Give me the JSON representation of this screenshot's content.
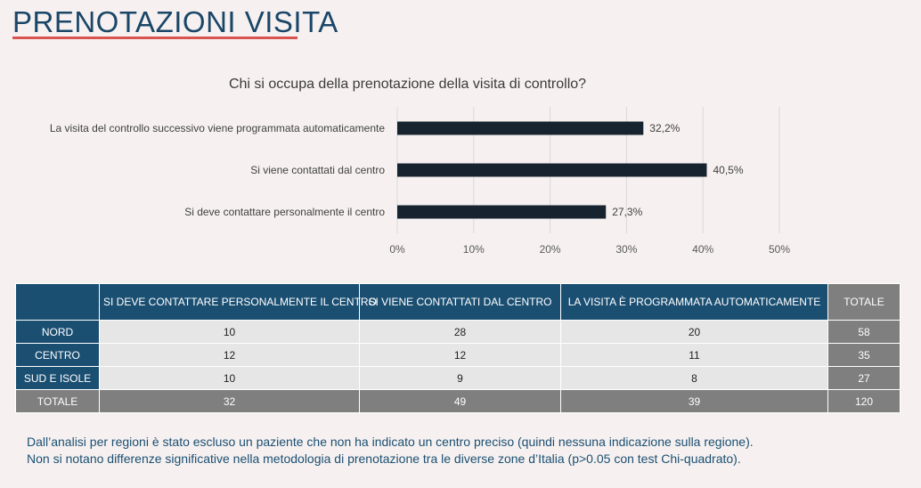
{
  "header": {
    "title": "PRENOTAZIONI VISITA"
  },
  "colors": {
    "bar": "#17232f",
    "grid": "#d9d9d9",
    "header_bg": "#1b4f72",
    "total_bg": "#7f7f7f"
  },
  "chart_data": {
    "type": "bar",
    "orientation": "horizontal",
    "title": "Chi si occupa della prenotazione della visita di controllo?",
    "categories": [
      "La visita del controllo successivo viene programmata automaticamente",
      "Si viene contattati dal centro",
      "Si deve contattare personalmente il centro"
    ],
    "values": [
      32.2,
      40.5,
      27.3
    ],
    "value_labels": [
      "32,2%",
      "40,5%",
      "27,3%"
    ],
    "xlim": [
      0,
      50
    ],
    "xticks": [
      0,
      10,
      20,
      30,
      40,
      50
    ],
    "xtick_labels": [
      "0%",
      "10%",
      "20%",
      "30%",
      "40%",
      "50%"
    ],
    "grid": true
  },
  "table": {
    "headers": [
      "",
      "SI DEVE CONTATTARE PERSONALMENTE IL CENTRO",
      "SI VIENE CONTATTATI DAL CENTRO",
      "LA VISITA È PROGRAMMATA AUTOMATICAMENTE",
      "TOTALE"
    ],
    "rows": [
      {
        "region": "NORD",
        "values": [
          "10",
          "28",
          "20"
        ],
        "total": "58"
      },
      {
        "region": "CENTRO",
        "values": [
          "12",
          "12",
          "11"
        ],
        "total": "35"
      },
      {
        "region": "SUD E ISOLE",
        "values": [
          "10",
          "9",
          "8"
        ],
        "total": "27"
      },
      {
        "region": "TOTALE",
        "values": [
          "32",
          "49",
          "39"
        ],
        "total": "120"
      }
    ]
  },
  "notes": [
    "Dall’analisi per regioni è stato escluso un paziente che non ha indicato un centro preciso (quindi nessuna indicazione sulla regione).",
    "Non si notano differenze significative nella metodologia di prenotazione tra le diverse zone d’Italia (p>0.05 con test Chi-quadrato)."
  ]
}
